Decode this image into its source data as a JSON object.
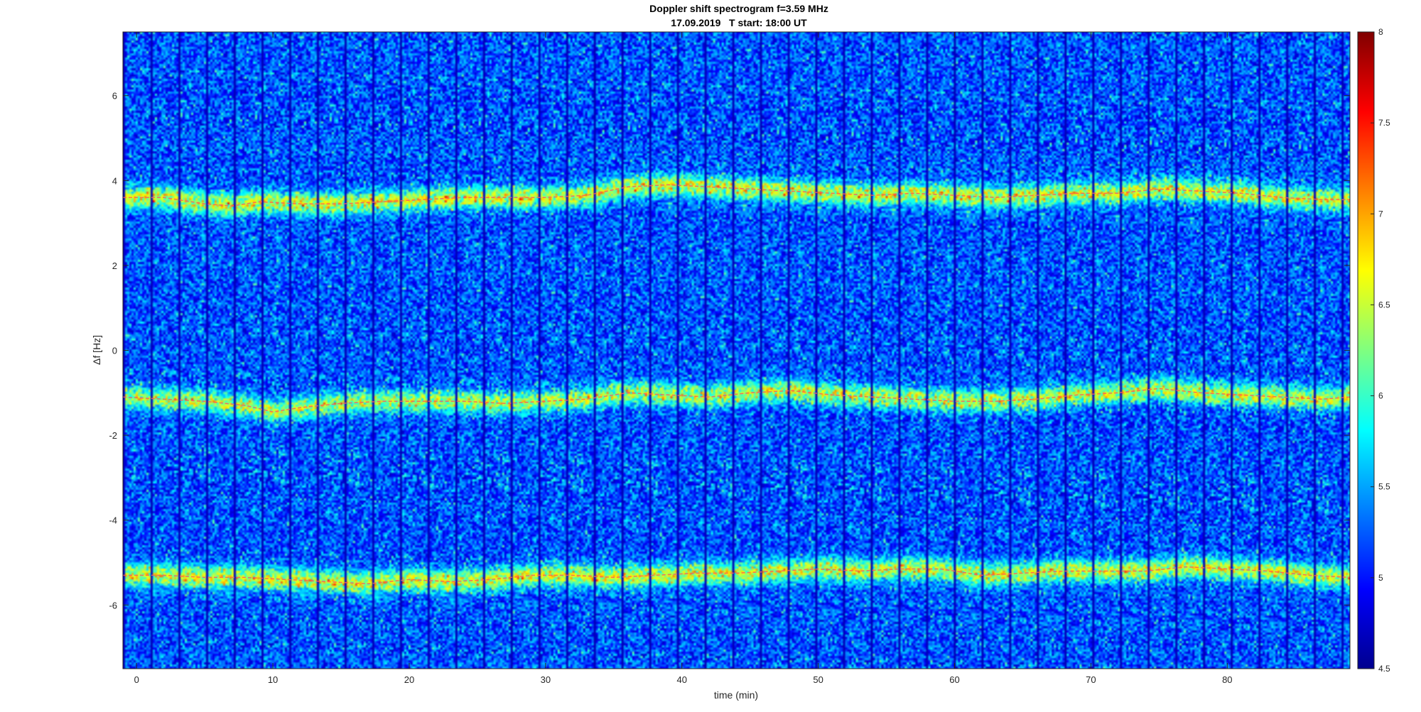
{
  "chart_data": {
    "type": "heatmap",
    "title": "Doppler shift spectrogram f=3.59 MHz",
    "subtitle": "17.09.2019   T start: 18:00 UT",
    "xlabel": "time (min)",
    "ylabel": "Δf [Hz]",
    "xlim": [
      -1,
      89
    ],
    "ylim": [
      -7.5,
      7.5
    ],
    "x_ticks": [
      0,
      10,
      20,
      30,
      40,
      50,
      60,
      70,
      80
    ],
    "y_ticks": [
      -6,
      -4,
      -2,
      0,
      2,
      4,
      6
    ],
    "colormap": "jet",
    "clim": [
      4.5,
      8
    ],
    "colorbar_ticks": [
      4.5,
      5,
      5.5,
      6,
      6.5,
      7,
      7.5,
      8
    ],
    "background_level": 5.2,
    "series": [
      {
        "band": "upper",
        "intensity": 6.6,
        "x": [
          -1,
          2,
          5,
          7,
          9,
          12,
          15,
          18,
          21,
          24,
          27,
          30,
          33,
          36,
          39,
          42,
          45,
          48,
          51,
          54,
          57,
          60,
          63,
          66,
          69,
          72,
          75,
          78,
          81,
          84,
          87,
          89
        ],
        "y": [
          3.6,
          3.6,
          3.45,
          3.4,
          3.5,
          3.45,
          3.45,
          3.5,
          3.55,
          3.6,
          3.6,
          3.6,
          3.65,
          3.85,
          3.9,
          3.85,
          3.8,
          3.75,
          3.7,
          3.65,
          3.7,
          3.65,
          3.6,
          3.65,
          3.7,
          3.7,
          3.8,
          3.75,
          3.7,
          3.6,
          3.55,
          3.55
        ]
      },
      {
        "band": "middle",
        "intensity": 6.5,
        "x": [
          -1,
          2,
          5,
          8,
          10,
          12,
          15,
          18,
          21,
          24,
          27,
          30,
          33,
          36,
          39,
          42,
          45,
          48,
          51,
          54,
          57,
          60,
          63,
          66,
          69,
          72,
          75,
          78,
          81,
          84,
          87,
          89
        ],
        "y": [
          -1.1,
          -1.15,
          -1.2,
          -1.3,
          -1.45,
          -1.35,
          -1.25,
          -1.2,
          -1.2,
          -1.2,
          -1.25,
          -1.2,
          -1.15,
          -1.0,
          -1.05,
          -1.1,
          -1.0,
          -0.95,
          -1.05,
          -1.1,
          -1.15,
          -1.2,
          -1.2,
          -1.15,
          -1.05,
          -1.0,
          -0.9,
          -1.0,
          -1.05,
          -1.1,
          -1.15,
          -1.1
        ]
      },
      {
        "band": "lower",
        "intensity": 6.6,
        "x": [
          -1,
          2,
          5,
          8,
          11,
          14,
          17,
          20,
          23,
          26,
          29,
          32,
          35,
          38,
          41,
          44,
          47,
          50,
          53,
          56,
          59,
          62,
          65,
          68,
          71,
          74,
          77,
          80,
          83,
          86,
          89
        ],
        "y": [
          -5.3,
          -5.3,
          -5.35,
          -5.35,
          -5.4,
          -5.45,
          -5.5,
          -5.4,
          -5.45,
          -5.4,
          -5.3,
          -5.3,
          -5.35,
          -5.3,
          -5.25,
          -5.25,
          -5.2,
          -5.15,
          -5.2,
          -5.15,
          -5.15,
          -5.3,
          -5.25,
          -5.2,
          -5.2,
          -5.2,
          -5.1,
          -5.15,
          -5.2,
          -5.3,
          -5.35
        ]
      }
    ]
  }
}
